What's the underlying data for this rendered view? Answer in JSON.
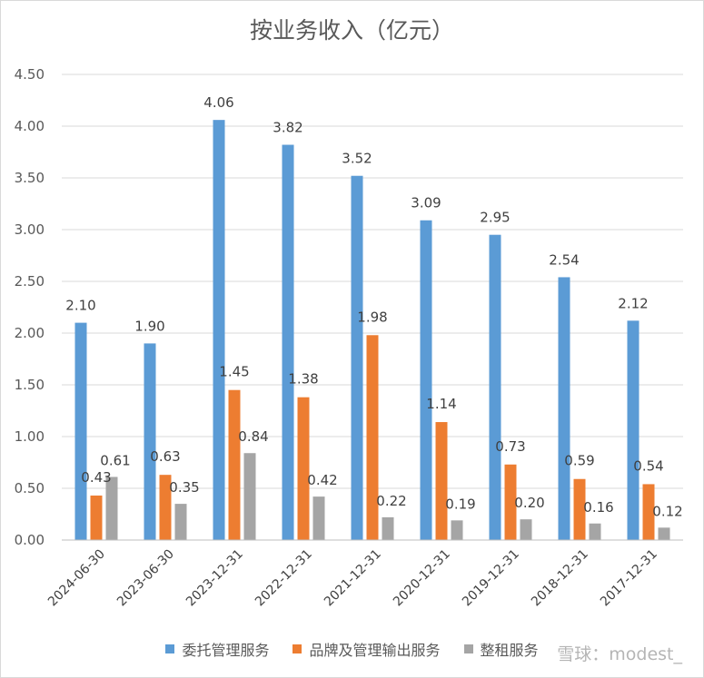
{
  "chart_data": {
    "type": "bar",
    "title": "按业务收入（亿元）",
    "categories": [
      "2024-06-30",
      "2023-06-30",
      "2023-12-31",
      "2022-12-31",
      "2021-12-31",
      "2020-12-31",
      "2019-12-31",
      "2018-12-31",
      "2017-12-31"
    ],
    "series": [
      {
        "name": "委托管理服务",
        "color": "#5b9bd5",
        "values": [
          2.1,
          1.9,
          4.06,
          3.82,
          3.52,
          3.09,
          2.95,
          2.54,
          2.12
        ]
      },
      {
        "name": "品牌及管理输出服务",
        "color": "#ed7d31",
        "values": [
          0.43,
          0.63,
          1.45,
          1.38,
          1.98,
          1.14,
          0.73,
          0.59,
          0.54
        ]
      },
      {
        "name": "整租服务",
        "color": "#a5a5a5",
        "values": [
          0.61,
          0.35,
          0.84,
          0.42,
          0.22,
          0.19,
          0.2,
          0.16,
          0.12
        ]
      }
    ],
    "yticks": [
      "0.00",
      "0.50",
      "1.00",
      "1.50",
      "2.00",
      "2.50",
      "3.00",
      "3.50",
      "4.00",
      "4.50"
    ],
    "ylim": [
      0,
      4.5
    ],
    "grid": true,
    "legend_position": "bottom",
    "data_labels": true
  },
  "watermark": "雪球：modest_"
}
